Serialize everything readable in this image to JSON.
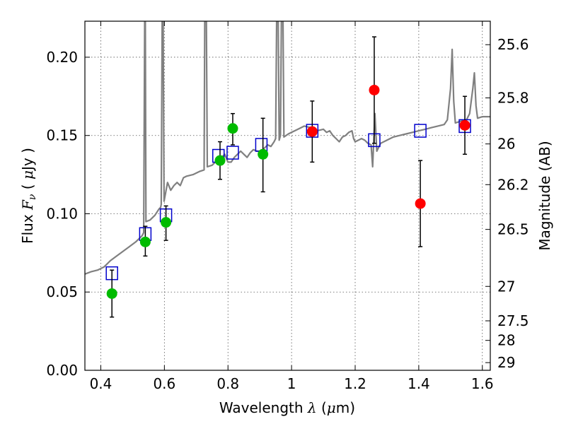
{
  "chart_data": {
    "type": "scatter",
    "xlabel": "Wavelength",
    "xlabel_symbol": "λ",
    "xlabel_unit_open": " (",
    "xlabel_unit_mu": "μ",
    "xlabel_unit_rest": "m)",
    "ylabel": "Flux",
    "ylabel_symbol": "F",
    "ylabel_sub": "ν",
    "ylabel_unit_open": "( ",
    "ylabel_unit_mu": "μ",
    "ylabel_unit_rest": "Jy )",
    "y2label": "Magnitude (AB)",
    "xlim": [
      0.35,
      1.625
    ],
    "ylim": [
      0.0,
      0.223
    ],
    "grid": true,
    "x_ticks": [
      0.4,
      0.6,
      0.8,
      1.0,
      1.2,
      1.4,
      1.6
    ],
    "x_tick_labels": [
      "0.4",
      "0.6",
      "0.8",
      "1",
      "1.2",
      "1.4",
      "1.6"
    ],
    "y_ticks": [
      0.0,
      0.05,
      0.1,
      0.15,
      0.2
    ],
    "y_tick_labels": [
      "0.00",
      "0.05",
      "0.10",
      "0.15",
      "0.20"
    ],
    "mag_ticks": [
      {
        "flux": 0.0049,
        "label": "29"
      },
      {
        "flux": 0.0191,
        "label": "28"
      },
      {
        "flux": 0.0316,
        "label": "27.5"
      },
      {
        "flux": 0.0536,
        "label": "27"
      },
      {
        "flux": 0.09,
        "label": "26.5"
      },
      {
        "flux": 0.1186,
        "label": "26.2"
      },
      {
        "flux": 0.1446,
        "label": "26"
      },
      {
        "flux": 0.174,
        "label": "25.8"
      },
      {
        "flux": 0.208,
        "label": "25.6"
      }
    ],
    "colors": {
      "model": "#808080",
      "photometry_box": "#0000cc",
      "observed_green": "#00bb00",
      "observed_red": "#ff0000",
      "errorbar": "#000000",
      "grid": "#555555"
    },
    "series": [
      {
        "name": "model-spectrum",
        "style": "line",
        "points": [
          [
            0.35,
            0.0615
          ],
          [
            0.37,
            0.063
          ],
          [
            0.39,
            0.064
          ],
          [
            0.41,
            0.066
          ],
          [
            0.43,
            0.07
          ],
          [
            0.45,
            0.073
          ],
          [
            0.47,
            0.076
          ],
          [
            0.49,
            0.079
          ],
          [
            0.51,
            0.082
          ],
          [
            0.53,
            0.086
          ],
          [
            0.535,
            0.088
          ],
          [
            0.538,
            0.223
          ],
          [
            0.54,
            0.223
          ],
          [
            0.542,
            0.095
          ],
          [
            0.555,
            0.096
          ],
          [
            0.57,
            0.099
          ],
          [
            0.583,
            0.103
          ],
          [
            0.588,
            0.104
          ],
          [
            0.59,
            0.106
          ],
          [
            0.593,
            0.223
          ],
          [
            0.596,
            0.223
          ],
          [
            0.599,
            0.108
          ],
          [
            0.61,
            0.12
          ],
          [
            0.62,
            0.115
          ],
          [
            0.63,
            0.118
          ],
          [
            0.64,
            0.12
          ],
          [
            0.65,
            0.118
          ],
          [
            0.66,
            0.123
          ],
          [
            0.67,
            0.124
          ],
          [
            0.69,
            0.125
          ],
          [
            0.71,
            0.127
          ],
          [
            0.725,
            0.128
          ],
          [
            0.727,
            0.223
          ],
          [
            0.732,
            0.223
          ],
          [
            0.735,
            0.13
          ],
          [
            0.75,
            0.131
          ],
          [
            0.76,
            0.133
          ],
          [
            0.775,
            0.134
          ],
          [
            0.78,
            0.136
          ],
          [
            0.79,
            0.138
          ],
          [
            0.8,
            0.133
          ],
          [
            0.81,
            0.133
          ],
          [
            0.82,
            0.136
          ],
          [
            0.83,
            0.138
          ],
          [
            0.84,
            0.14
          ],
          [
            0.85,
            0.138
          ],
          [
            0.86,
            0.136
          ],
          [
            0.87,
            0.139
          ],
          [
            0.88,
            0.141
          ],
          [
            0.89,
            0.14
          ],
          [
            0.905,
            0.14
          ],
          [
            0.915,
            0.142
          ],
          [
            0.925,
            0.144
          ],
          [
            0.935,
            0.143
          ],
          [
            0.945,
            0.146
          ],
          [
            0.95,
            0.148
          ],
          [
            0.953,
            0.223
          ],
          [
            0.958,
            0.223
          ],
          [
            0.961,
            0.147
          ],
          [
            0.965,
            0.15
          ],
          [
            0.968,
            0.223
          ],
          [
            0.973,
            0.223
          ],
          [
            0.976,
            0.149
          ],
          [
            0.99,
            0.151
          ],
          [
            1.0,
            0.152
          ],
          [
            1.02,
            0.154
          ],
          [
            1.04,
            0.156
          ],
          [
            1.06,
            0.155
          ],
          [
            1.08,
            0.153
          ],
          [
            1.1,
            0.154
          ],
          [
            1.11,
            0.152
          ],
          [
            1.12,
            0.153
          ],
          [
            1.13,
            0.15
          ],
          [
            1.14,
            0.148
          ],
          [
            1.15,
            0.146
          ],
          [
            1.16,
            0.149
          ],
          [
            1.17,
            0.15
          ],
          [
            1.18,
            0.152
          ],
          [
            1.19,
            0.153
          ],
          [
            1.195,
            0.148
          ],
          [
            1.2,
            0.146
          ],
          [
            1.21,
            0.147
          ],
          [
            1.22,
            0.148
          ],
          [
            1.23,
            0.147
          ],
          [
            1.24,
            0.145
          ],
          [
            1.25,
            0.144
          ],
          [
            1.255,
            0.13
          ],
          [
            1.262,
            0.164
          ],
          [
            1.268,
            0.14
          ],
          [
            1.28,
            0.145
          ],
          [
            1.3,
            0.147
          ],
          [
            1.32,
            0.149
          ],
          [
            1.34,
            0.15
          ],
          [
            1.36,
            0.151
          ],
          [
            1.38,
            0.152
          ],
          [
            1.4,
            0.153
          ],
          [
            1.42,
            0.154
          ],
          [
            1.44,
            0.155
          ],
          [
            1.46,
            0.156
          ],
          [
            1.48,
            0.157
          ],
          [
            1.49,
            0.16
          ],
          [
            1.5,
            0.18
          ],
          [
            1.505,
            0.205
          ],
          [
            1.51,
            0.172
          ],
          [
            1.515,
            0.158
          ],
          [
            1.53,
            0.159
          ],
          [
            1.55,
            0.16
          ],
          [
            1.56,
            0.164
          ],
          [
            1.57,
            0.18
          ],
          [
            1.575,
            0.19
          ],
          [
            1.58,
            0.169
          ],
          [
            1.585,
            0.161
          ],
          [
            1.6,
            0.162
          ],
          [
            1.625,
            0.162
          ]
        ]
      },
      {
        "name": "model-photometry",
        "style": "open-square",
        "points": [
          [
            0.435,
            0.062
          ],
          [
            0.54,
            0.087
          ],
          [
            0.605,
            0.099
          ],
          [
            0.77,
            0.137
          ],
          [
            0.815,
            0.139
          ],
          [
            0.905,
            0.144
          ],
          [
            1.065,
            0.153
          ],
          [
            1.26,
            0.147
          ],
          [
            1.405,
            0.153
          ],
          [
            1.545,
            0.156
          ]
        ]
      },
      {
        "name": "observed-green",
        "style": "filled-circle",
        "color": "#00bb00",
        "points": [
          {
            "x": 0.435,
            "y": 0.049,
            "lo": 0.034,
            "hi": 0.064
          },
          {
            "x": 0.54,
            "y": 0.082,
            "lo": 0.073,
            "hi": 0.092
          },
          {
            "x": 0.605,
            "y": 0.0945,
            "lo": 0.083,
            "hi": 0.105
          },
          {
            "x": 0.775,
            "y": 0.134,
            "lo": 0.122,
            "hi": 0.146
          },
          {
            "x": 0.815,
            "y": 0.1545,
            "lo": 0.144,
            "hi": 0.164
          },
          {
            "x": 0.91,
            "y": 0.138,
            "lo": 0.114,
            "hi": 0.161
          }
        ]
      },
      {
        "name": "observed-red",
        "style": "filled-circle",
        "color": "#ff0000",
        "points": [
          {
            "x": 1.065,
            "y": 0.1525,
            "lo": 0.133,
            "hi": 0.172
          },
          {
            "x": 1.26,
            "y": 0.179,
            "lo": 0.145,
            "hi": 0.213
          },
          {
            "x": 1.405,
            "y": 0.1065,
            "lo": 0.079,
            "hi": 0.134
          },
          {
            "x": 1.545,
            "y": 0.1565,
            "lo": 0.138,
            "hi": 0.175
          }
        ]
      }
    ]
  }
}
